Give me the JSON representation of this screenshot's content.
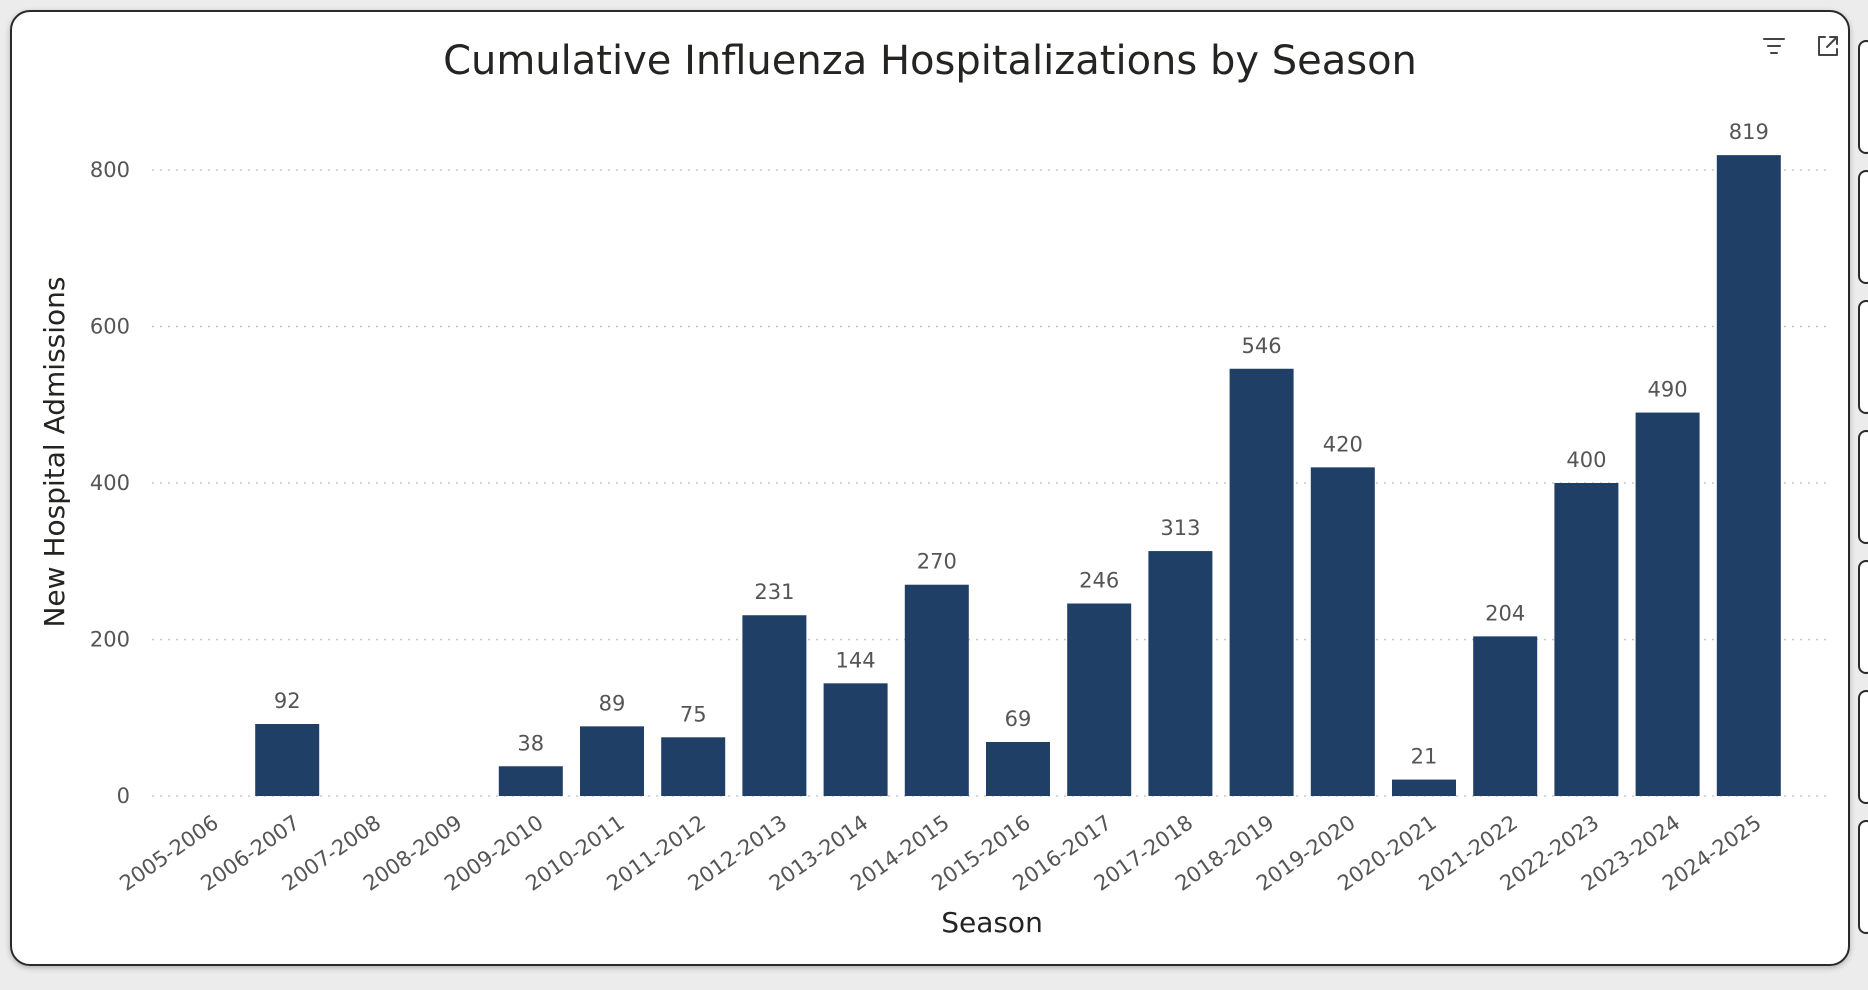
{
  "chart_data": {
    "type": "bar",
    "title": "Cumulative Influenza Hospitalizations by Season",
    "xlabel": "Season",
    "ylabel": "New Hospital Admissions",
    "ylim": [
      0,
      880
    ],
    "yticks": [
      0,
      200,
      400,
      600,
      800
    ],
    "grid": true,
    "bar_color": "#1f3f66",
    "categories": [
      "2005-2006",
      "2006-2007",
      "2007-2008",
      "2008-2009",
      "2009-2010",
      "2010-2011",
      "2011-2012",
      "2012-2013",
      "2013-2014",
      "2014-2015",
      "2015-2016",
      "2016-2017",
      "2017-2018",
      "2018-2019",
      "2019-2020",
      "2020-2021",
      "2021-2022",
      "2022-2023",
      "2023-2024",
      "2024-2025"
    ],
    "values": [
      null,
      92,
      null,
      null,
      38,
      89,
      75,
      231,
      144,
      270,
      69,
      246,
      313,
      546,
      420,
      21,
      204,
      400,
      490,
      819
    ]
  },
  "header": {
    "filter_icon": "filter-icon",
    "focus_icon": "focus-mode-icon"
  }
}
